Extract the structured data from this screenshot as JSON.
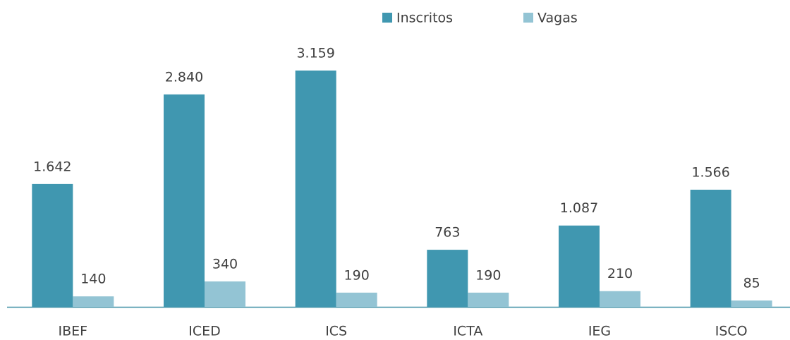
{
  "chart_data": {
    "type": "bar",
    "categories": [
      "IBEF",
      "ICED",
      "ICS",
      "ICTA",
      "IEG",
      "ISCO"
    ],
    "series": [
      {
        "name": "Inscritos",
        "color": "#4097b0",
        "values": [
          1642,
          2840,
          3159,
          763,
          1087,
          1566
        ],
        "value_labels": [
          "1.642",
          "2.840",
          "3.159",
          "763",
          "1.087",
          "1.566"
        ]
      },
      {
        "name": "Vagas",
        "color": "#93c4d4",
        "values": [
          140,
          340,
          190,
          190,
          210,
          85
        ]
      }
    ],
    "legend": "top"
  }
}
